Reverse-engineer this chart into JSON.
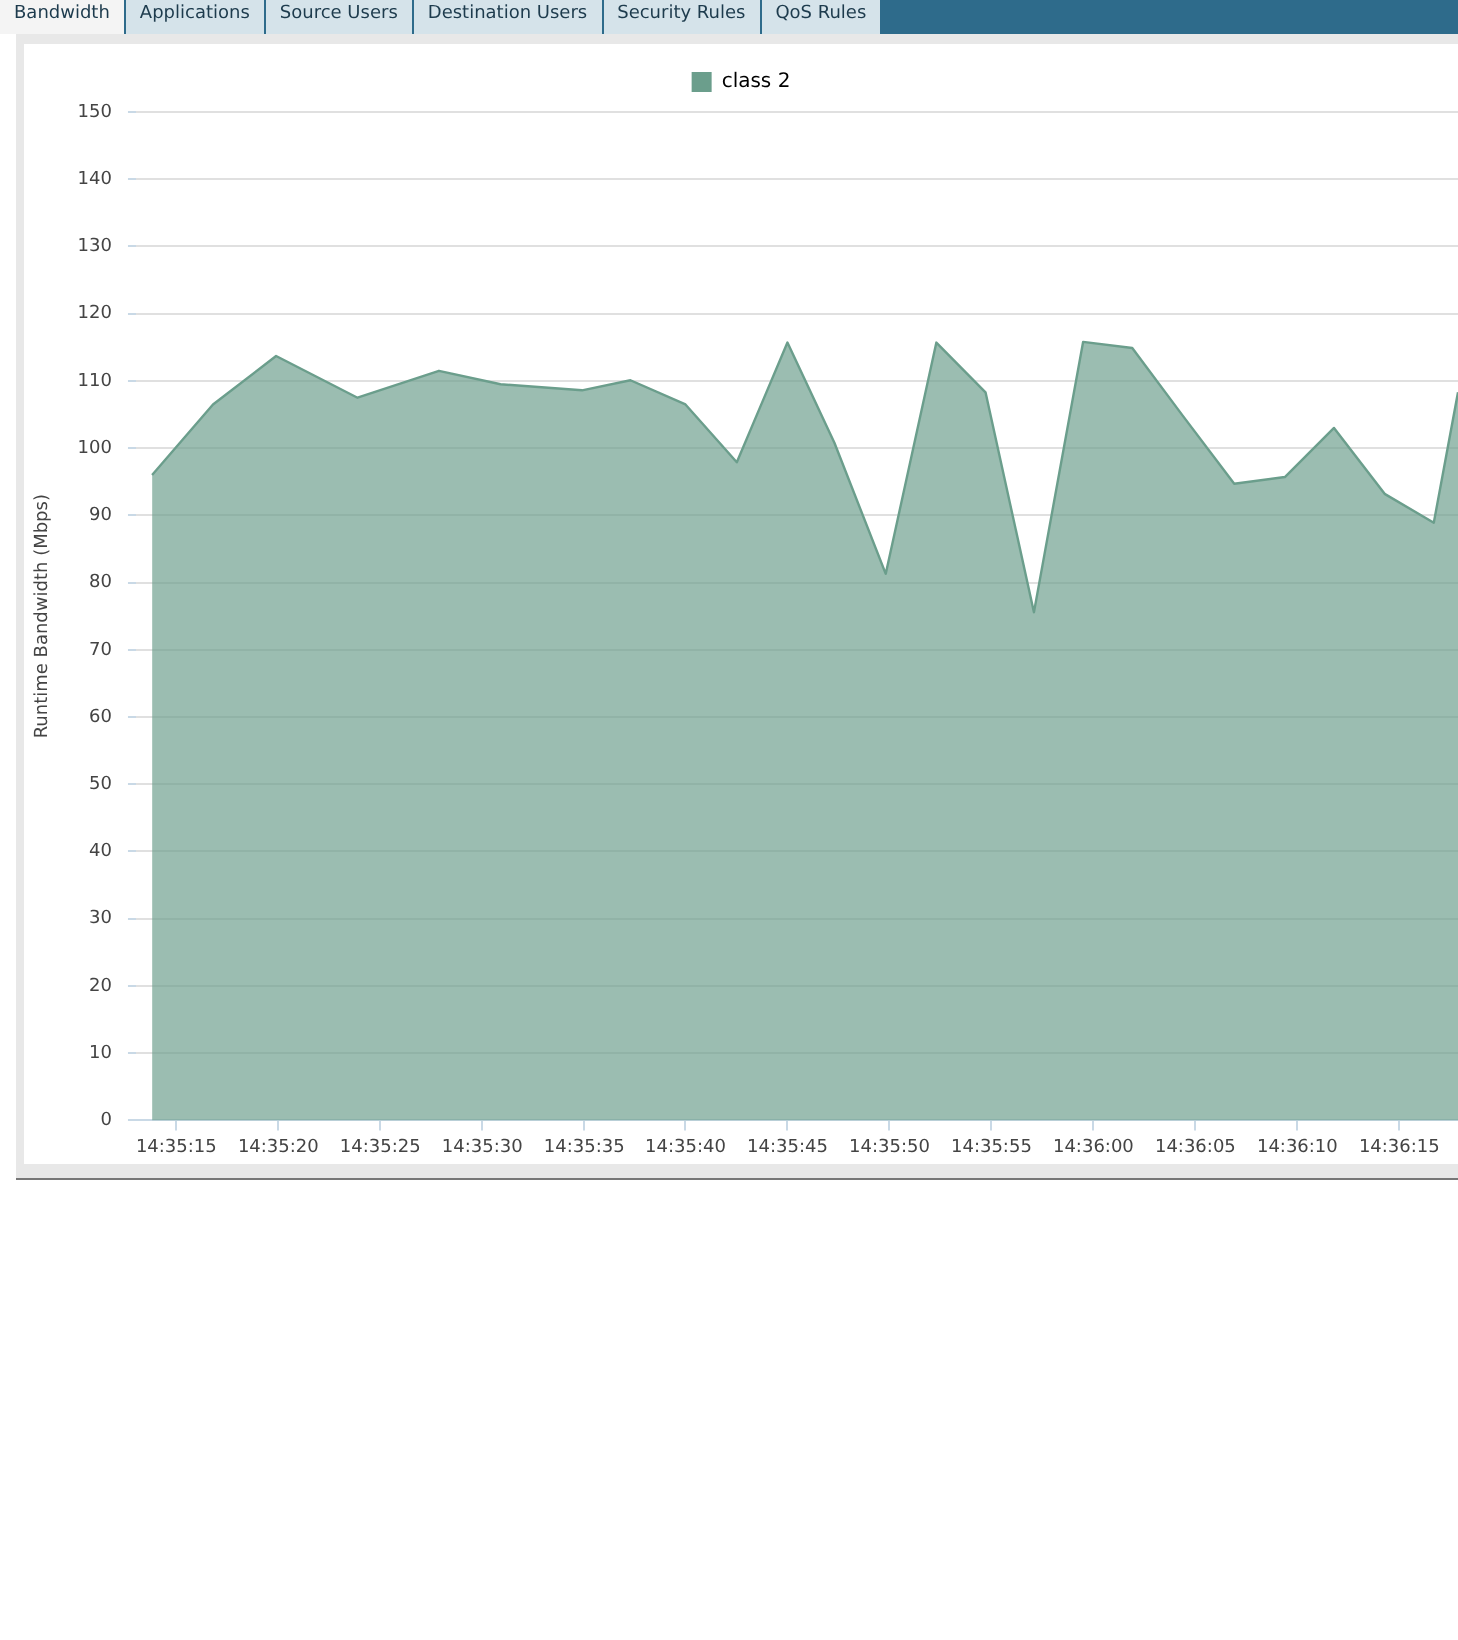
{
  "chart_data": {
    "type": "area",
    "ylabel": "Runtime Bandwidth (Mbps)",
    "annotations": [
      "Bandwidth",
      "Applications",
      "Source Users",
      "Destination Users",
      "Security Rules",
      "QoS Rules"
    ],
    "x": [
      14.58717,
      14.588,
      14.58886,
      14.58997,
      14.59108,
      14.59192,
      14.59303,
      14.59369,
      14.59444,
      14.59514,
      14.59583,
      14.59647,
      14.59717,
      14.59786,
      14.59853,
      14.59919,
      14.59986,
      14.60053,
      14.60122,
      14.60192,
      14.60261,
      14.60328,
      14.60397,
      14.60464,
      14.60497
    ],
    "series": [
      {
        "name": "class 2",
        "color": "#6b9e8c",
        "values": [
          96,
          106.5,
          113.7,
          107.5,
          111.5,
          109.5,
          108.6,
          110.1,
          106.5,
          97.9,
          115.7,
          100.8,
          81.3,
          115.7,
          108.3,
          75.6,
          115.8,
          114.9,
          104.8,
          94.7,
          95.7,
          103,
          93.2,
          88.9,
          108.3
        ]
      }
    ],
    "xlim": [
      14.58695,
      14.60497
    ],
    "xticks": [
      {
        "value": 14.5875,
        "label": "14:35:15"
      },
      {
        "value": 14.58889,
        "label": "14:35:20"
      },
      {
        "value": 14.59028,
        "label": "14:35:25"
      },
      {
        "value": 14.59167,
        "label": "14:35:30"
      },
      {
        "value": 14.59306,
        "label": "14:35:35"
      },
      {
        "value": 14.59444,
        "label": "14:35:40"
      },
      {
        "value": 14.59583,
        "label": "14:35:45"
      },
      {
        "value": 14.59722,
        "label": "14:35:50"
      },
      {
        "value": 14.59861,
        "label": "14:35:55"
      },
      {
        "value": 14.6,
        "label": "14:36:00"
      },
      {
        "value": 14.60139,
        "label": "14:36:05"
      },
      {
        "value": 14.60278,
        "label": "14:36:10"
      },
      {
        "value": 14.60417,
        "label": "14:36:15"
      }
    ],
    "ylim": [
      0,
      150
    ],
    "yticks": [
      0,
      10,
      20,
      30,
      40,
      50,
      60,
      70,
      80,
      90,
      100,
      110,
      120,
      130,
      140,
      150
    ],
    "grid": "y",
    "legend": "top",
    "marker": "none",
    "line_style": "solid"
  }
}
